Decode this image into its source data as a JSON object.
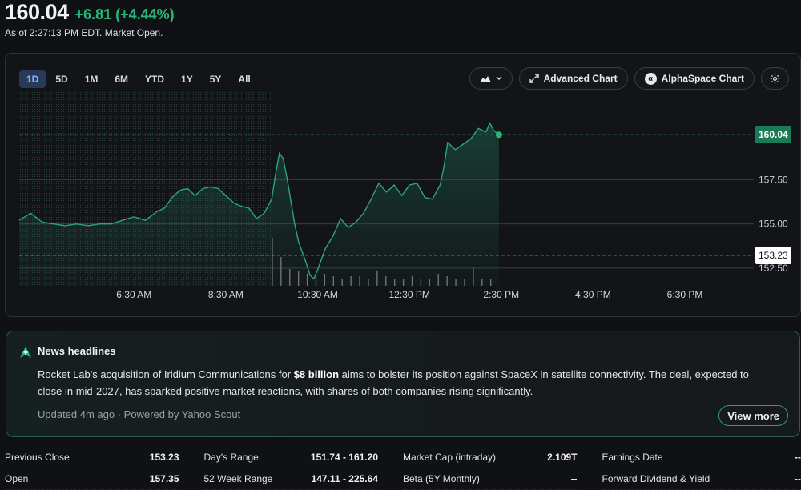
{
  "header": {
    "price": "160.04",
    "change": "+6.81 (+4.44%)",
    "as_of": "As of 2:27:13 PM EDT. Market Open."
  },
  "toolbar": {
    "ranges": [
      "1D",
      "5D",
      "1M",
      "6M",
      "YTD",
      "1Y",
      "5Y",
      "All"
    ],
    "active_range": "1D",
    "advanced_chart": "Advanced Chart",
    "alphaspace_chart": "AlphaSpace Chart",
    "alphaspace_logo": "α"
  },
  "colors": {
    "up": "#28b67a",
    "line": "#2ea57a",
    "active_range_bg": "#283a5a"
  },
  "chart_data": {
    "type": "area",
    "y_ticks": [
      "157.50",
      "155.00",
      "152.50"
    ],
    "x_ticks": [
      "6:30 AM",
      "8:30 AM",
      "10:30 AM",
      "12:30 PM",
      "2:30 PM",
      "4:30 PM",
      "6:30 PM"
    ],
    "ylim": [
      151.5,
      162.0
    ],
    "last_price": 160.04,
    "last_price_label": "160.04",
    "previous_close": 153.23,
    "previous_close_label": "153.23",
    "x_start": "4:00 AM",
    "x_end": "8:00 PM",
    "market_open": "9:30 AM",
    "series": [
      {
        "values": [
          [
            "4:00",
            155.2
          ],
          [
            "4:15",
            155.6
          ],
          [
            "4:30",
            155.1
          ],
          [
            "4:45",
            155.0
          ],
          [
            "5:00",
            154.9
          ],
          [
            "5:15",
            155.0
          ],
          [
            "5:30",
            154.9
          ],
          [
            "5:45",
            155.0
          ],
          [
            "6:00",
            155.0
          ],
          [
            "6:15",
            155.2
          ],
          [
            "6:30",
            155.4
          ],
          [
            "6:45",
            155.2
          ],
          [
            "7:00",
            155.7
          ],
          [
            "7:10",
            155.9
          ],
          [
            "7:20",
            156.5
          ],
          [
            "7:30",
            156.9
          ],
          [
            "7:40",
            157.0
          ],
          [
            "7:50",
            156.6
          ],
          [
            "8:00",
            157.0
          ],
          [
            "8:10",
            157.1
          ],
          [
            "8:20",
            157.0
          ],
          [
            "8:30",
            156.6
          ],
          [
            "8:40",
            156.2
          ],
          [
            "8:50",
            156.0
          ],
          [
            "9:00",
            155.9
          ],
          [
            "9:10",
            155.3
          ],
          [
            "9:20",
            155.6
          ],
          [
            "9:30",
            156.4
          ],
          [
            "9:35",
            157.8
          ],
          [
            "9:40",
            159.0
          ],
          [
            "9:45",
            158.7
          ],
          [
            "9:50",
            157.6
          ],
          [
            "9:55",
            156.3
          ],
          [
            "10:00",
            155.0
          ],
          [
            "10:05",
            154.0
          ],
          [
            "10:10",
            153.4
          ],
          [
            "10:15",
            152.8
          ],
          [
            "10:20",
            152.1
          ],
          [
            "10:25",
            151.9
          ],
          [
            "10:30",
            152.4
          ],
          [
            "10:40",
            153.6
          ],
          [
            "10:50",
            154.3
          ],
          [
            "11:00",
            155.3
          ],
          [
            "11:10",
            154.8
          ],
          [
            "11:20",
            155.1
          ],
          [
            "11:30",
            155.6
          ],
          [
            "11:40",
            156.4
          ],
          [
            "11:50",
            157.3
          ],
          [
            "12:00",
            156.8
          ],
          [
            "12:10",
            157.2
          ],
          [
            "12:20",
            156.6
          ],
          [
            "12:30",
            157.2
          ],
          [
            "12:40",
            157.3
          ],
          [
            "12:50",
            156.5
          ],
          [
            "13:00",
            156.4
          ],
          [
            "13:10",
            157.2
          ],
          [
            "13:15",
            158.2
          ],
          [
            "13:20",
            159.6
          ],
          [
            "13:30",
            159.2
          ],
          [
            "13:40",
            159.5
          ],
          [
            "13:50",
            159.8
          ],
          [
            "14:00",
            160.4
          ],
          [
            "14:10",
            160.2
          ],
          [
            "14:15",
            160.7
          ],
          [
            "14:20",
            160.3
          ],
          [
            "14:27",
            160.04
          ]
        ]
      }
    ]
  },
  "news": {
    "title": "News headlines",
    "body_before": "Rocket Lab's acquisition of Iridium Communications for ",
    "body_bold": "$8 billion",
    "body_after": " aims to bolster its position against SpaceX in satellite connectivity. The deal, expected to close in mid-2027, has sparked positive market reactions, with shares of both companies rising significantly.",
    "meta": "Updated 4m ago · Powered by Yahoo Scout",
    "view_more": "View more"
  },
  "stats": [
    {
      "label": "Previous Close",
      "value": "153.23"
    },
    {
      "label": "Day's Range",
      "value": "151.74 - 161.20"
    },
    {
      "label": "Market Cap (intraday)",
      "value": "2.109T"
    },
    {
      "label": "Earnings Date",
      "value": "--"
    },
    {
      "label": "Open",
      "value": "157.35"
    },
    {
      "label": "52 Week Range",
      "value": "147.11 - 225.64"
    },
    {
      "label": "Beta (5Y Monthly)",
      "value": "--"
    },
    {
      "label": "Forward Dividend & Yield",
      "value": "--"
    }
  ]
}
